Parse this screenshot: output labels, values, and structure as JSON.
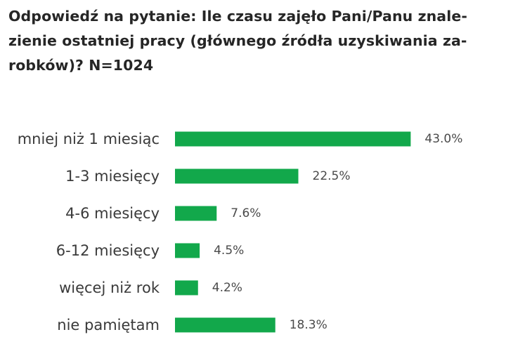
{
  "title_lines": [
    "Odpowiedź na pytanie: Ile czasu zajęło Pani/Panu znale-",
    "zienie ostatniej pracy (głównego źródła uzyskiwania za-",
    "robków)? N=1024"
  ],
  "chart_data": {
    "type": "bar",
    "orientation": "horizontal",
    "title": "Odpowiedź na pytanie: Ile czasu zajęło Pani/Panu znalezienie ostatniej pracy (głównego źródła uzyskiwania zarobków)? N=1024",
    "categories": [
      "mniej niż 1 miesiąc",
      "1-3 miesięcy",
      "4-6 miesięcy",
      "6-12 miesięcy",
      "więcej niż rok",
      "nie pamiętam"
    ],
    "values": [
      43.0,
      22.5,
      7.6,
      4.5,
      4.2,
      18.3
    ],
    "value_labels": [
      "43.0%",
      "22.5%",
      "7.6%",
      "4.5%",
      "4.2%",
      "18.3%"
    ],
    "unit": "%",
    "bar_color": "#12a84b",
    "grid": false,
    "legend": "none"
  }
}
